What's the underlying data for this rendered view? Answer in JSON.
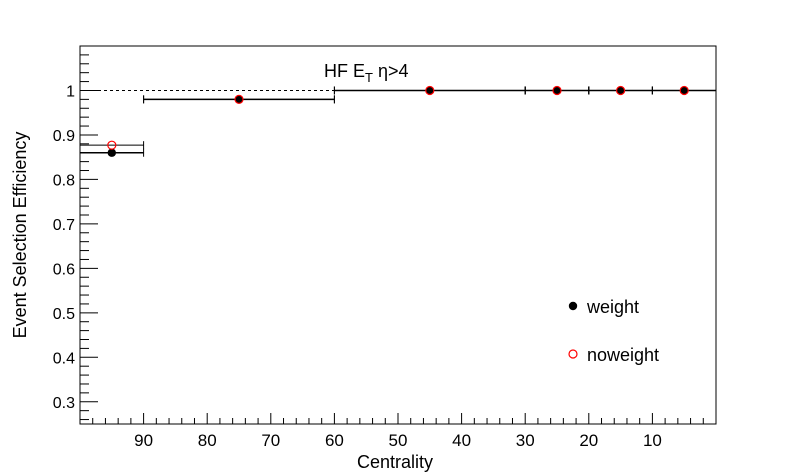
{
  "chart_data": {
    "type": "scatter",
    "title_main": "HF E",
    "title_sub": "T",
    "title_tail": " η>4",
    "xlabel": "Centrality",
    "ylabel": "Event Selection Efficiency",
    "x_reversed": true,
    "xlim": [
      0,
      100
    ],
    "ylim": [
      0.25,
      1.1
    ],
    "x_ticks": [
      90,
      80,
      70,
      60,
      50,
      40,
      30,
      20,
      10
    ],
    "y_ticks": [
      0.3,
      0.4,
      0.5,
      0.6,
      0.7,
      0.8,
      0.9,
      1
    ],
    "y_tick_labels": [
      "0.3",
      "0.4",
      "0.5",
      "0.6",
      "0.7",
      "0.8",
      "0.9",
      "1"
    ],
    "reference_line": {
      "y": 1.0,
      "style": "dashed"
    },
    "series": [
      {
        "name": "weight",
        "marker": "filled-circle",
        "color": "#000000",
        "points": [
          {
            "x": 95,
            "y": 0.86,
            "xerr": 5
          },
          {
            "x": 75,
            "y": 0.98,
            "xerr": 15
          },
          {
            "x": 45,
            "y": 1.0,
            "xerr": 15
          },
          {
            "x": 25,
            "y": 1.0,
            "xerr": 5
          },
          {
            "x": 15,
            "y": 1.0,
            "xerr": 5
          },
          {
            "x": 5,
            "y": 1.0,
            "xerr": 5
          }
        ]
      },
      {
        "name": "noweight",
        "marker": "open-circle",
        "color": "#ff0000",
        "points": [
          {
            "x": 95,
            "y": 0.877,
            "xerr": 5
          },
          {
            "x": 75,
            "y": 0.98,
            "xerr": 15
          },
          {
            "x": 45,
            "y": 1.0,
            "xerr": 15
          },
          {
            "x": 25,
            "y": 1.0,
            "xerr": 5
          },
          {
            "x": 15,
            "y": 1.0,
            "xerr": 5
          },
          {
            "x": 5,
            "y": 1.0,
            "xerr": 5
          }
        ]
      }
    ],
    "legend_position": "bottom-right"
  }
}
